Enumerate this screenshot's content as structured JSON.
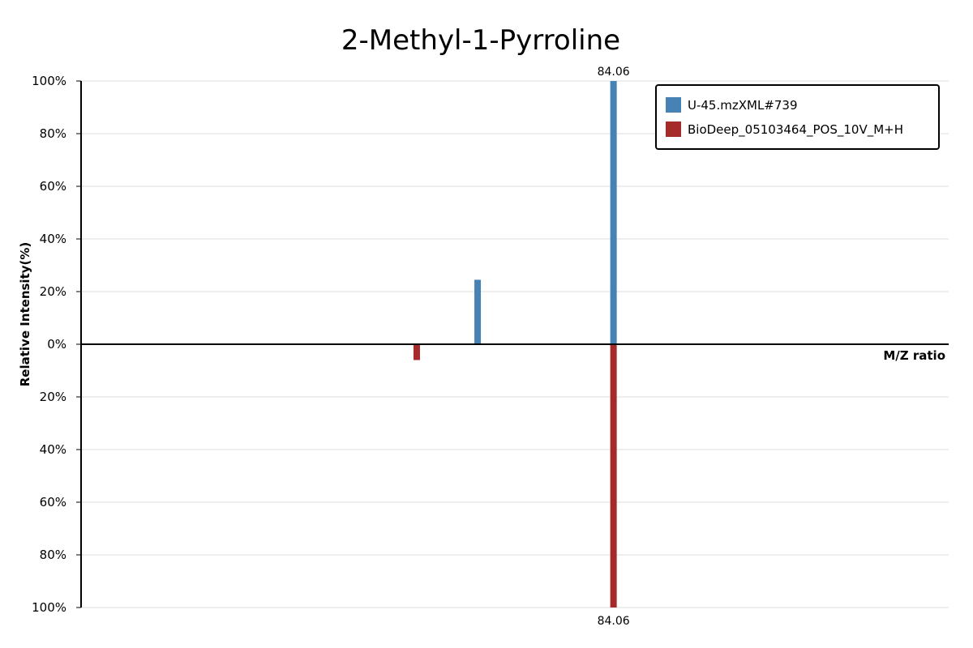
{
  "chart_data": {
    "type": "bar",
    "title": "2-Methyl-1-Pyrroline",
    "xlabel": "M/Z ratio",
    "ylabel": "Relative Intensity(%)",
    "layout": "mirrored",
    "yticks_upper": [
      "100%",
      "80%",
      "60%",
      "40%",
      "20%",
      "0%"
    ],
    "yticks_lower": [
      "20%",
      "40%",
      "60%",
      "80%",
      "100%"
    ],
    "ylim": [
      -100,
      100
    ],
    "grid": true,
    "legend_position": "top-right",
    "series": [
      {
        "name": "U-45.mzXML#739",
        "color": "#4682b4",
        "direction": "up",
        "peaks": [
          {
            "mz": 67.1,
            "intensity": 24.5
          },
          {
            "mz": 84.06,
            "intensity": 100,
            "label": "84.06"
          }
        ]
      },
      {
        "name": "BioDeep_05103464_POS_10V_M+H",
        "color": "#a52a2a",
        "direction": "down",
        "peaks": [
          {
            "mz": 59.5,
            "intensity": 6
          },
          {
            "mz": 84.06,
            "intensity": 100,
            "label": "84.06"
          }
        ]
      }
    ],
    "xlim": [
      17.6,
      125.9
    ]
  }
}
